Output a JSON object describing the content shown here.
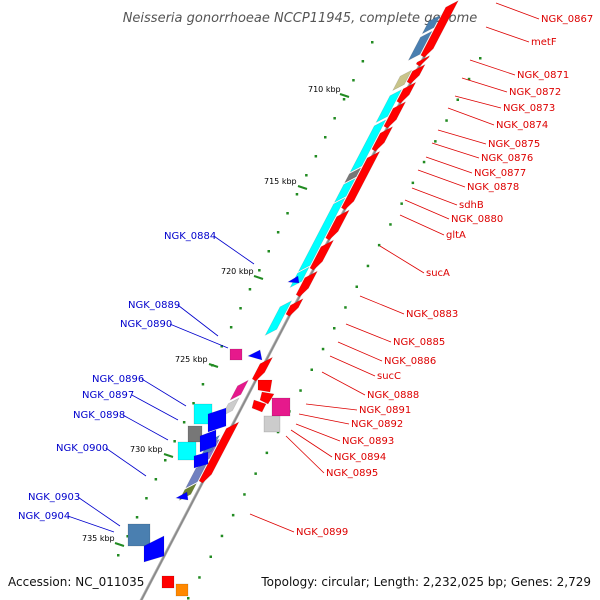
{
  "title": "Neisseria gonorrhoeae NCCP11945, complete genome",
  "footer": {
    "accession": "Accession: NC_011035",
    "summary": "Topology: circular; Length: 2,232,025 bp; Genes: 2,729"
  },
  "colors": {
    "forward_label": "#dd0000",
    "reverse_label": "#0000cc",
    "cds_forward": "#ff0000",
    "cds_reverse": "#0000ff",
    "tick": "#228b22",
    "backbone": "#888888",
    "cyan_track": "#00ffff"
  },
  "scale_labels": [
    "710 kbp",
    "715 kbp",
    "720 kbp",
    "725 kbp",
    "730 kbp",
    "735 kbp"
  ],
  "forward_genes": [
    "NGK_0867",
    "metF",
    "NGK_0871",
    "NGK_0872",
    "NGK_0873",
    "NGK_0874",
    "NGK_0875",
    "NGK_0876",
    "NGK_0877",
    "NGK_0878",
    "sdhB",
    "NGK_0880",
    "gltA",
    "sucA",
    "NGK_0883",
    "NGK_0885",
    "NGK_0886",
    "sucC",
    "NGK_0888",
    "NGK_0891",
    "NGK_0892",
    "NGK_0893",
    "NGK_0894",
    "NGK_0895",
    "NGK_0899"
  ],
  "reverse_genes": [
    "NGK_0884",
    "NGK_0889",
    "NGK_0890",
    "NGK_0896",
    "NGK_0897",
    "NGK_0898",
    "NGK_0900",
    "NGK_0903",
    "NGK_0904"
  ]
}
